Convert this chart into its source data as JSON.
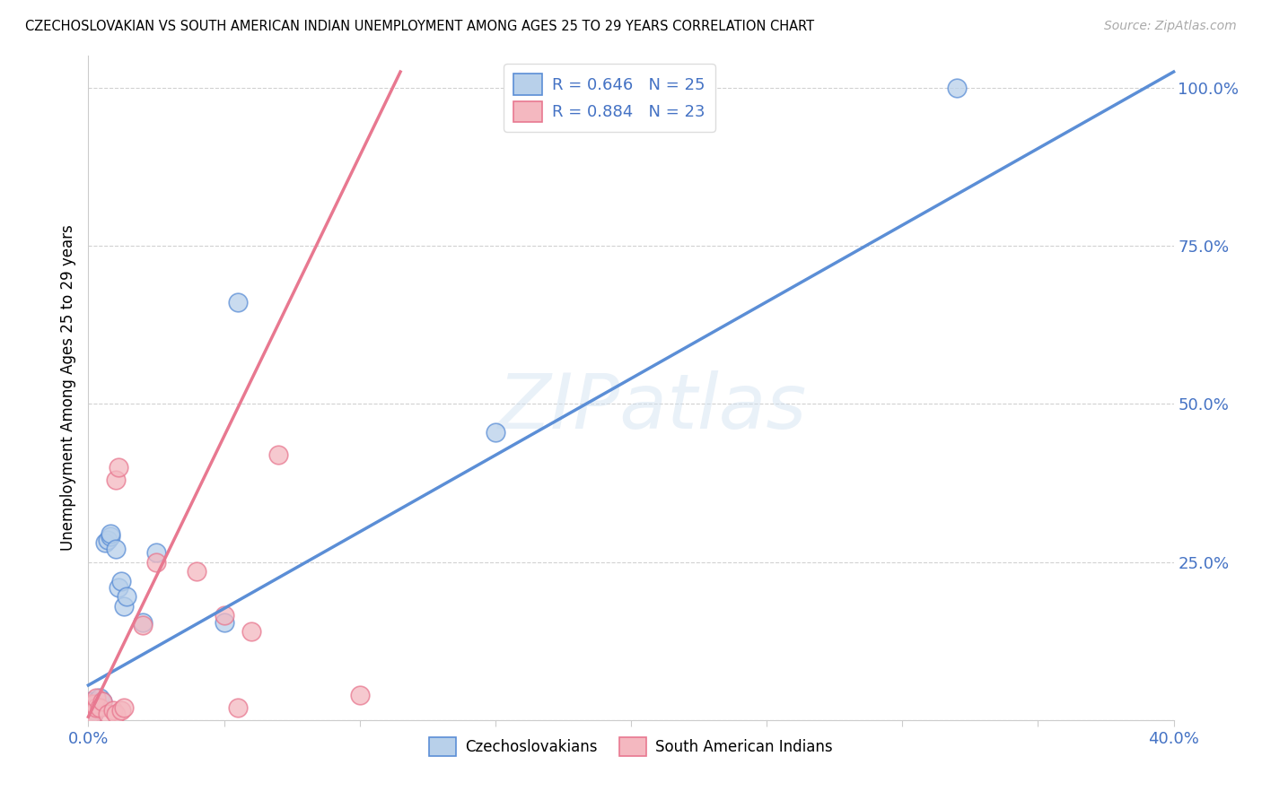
{
  "title": "CZECHOSLOVAKIAN VS SOUTH AMERICAN INDIAN UNEMPLOYMENT AMONG AGES 25 TO 29 YEARS CORRELATION CHART",
  "source": "Source: ZipAtlas.com",
  "ylabel": "Unemployment Among Ages 25 to 29 years",
  "background_color": "#ffffff",
  "grid_color": "#cccccc",
  "xlim": [
    0.0,
    0.4
  ],
  "ylim": [
    0.0,
    1.05
  ],
  "xticks": [
    0.0,
    0.05,
    0.1,
    0.15,
    0.2,
    0.25,
    0.3,
    0.35,
    0.4
  ],
  "xtick_labels": [
    "0.0%",
    "",
    "",
    "",
    "",
    "",
    "",
    "",
    "40.0%"
  ],
  "ytick_positions": [
    0.0,
    0.25,
    0.5,
    0.75,
    1.0
  ],
  "ytick_labels": [
    "",
    "25.0%",
    "50.0%",
    "75.0%",
    "100.0%"
  ],
  "blue_R": 0.646,
  "blue_N": 25,
  "pink_R": 0.884,
  "pink_N": 23,
  "blue_fill": "#b8d0ea",
  "pink_fill": "#f4b8c0",
  "blue_edge": "#5b8ed6",
  "pink_edge": "#e87890",
  "blue_label": "Czechoslovakians",
  "pink_label": "South American Indians",
  "watermark_text": "ZIPatlas",
  "blue_scatter_x": [
    0.001,
    0.001,
    0.001,
    0.002,
    0.002,
    0.002,
    0.003,
    0.003,
    0.004,
    0.005,
    0.006,
    0.007,
    0.008,
    0.008,
    0.01,
    0.011,
    0.012,
    0.013,
    0.014,
    0.02,
    0.025,
    0.05,
    0.055,
    0.15,
    0.32
  ],
  "blue_scatter_y": [
    0.01,
    0.02,
    0.03,
    0.01,
    0.015,
    0.025,
    0.03,
    0.025,
    0.035,
    0.03,
    0.28,
    0.285,
    0.29,
    0.295,
    0.27,
    0.21,
    0.22,
    0.18,
    0.195,
    0.155,
    0.265,
    0.155,
    0.66,
    0.455,
    1.0
  ],
  "pink_scatter_x": [
    0.001,
    0.001,
    0.002,
    0.002,
    0.003,
    0.003,
    0.004,
    0.005,
    0.007,
    0.009,
    0.01,
    0.01,
    0.011,
    0.012,
    0.013,
    0.02,
    0.025,
    0.04,
    0.05,
    0.055,
    0.06,
    0.07,
    0.1
  ],
  "pink_scatter_y": [
    0.01,
    0.025,
    0.01,
    0.025,
    0.02,
    0.035,
    0.02,
    0.03,
    0.01,
    0.015,
    0.01,
    0.38,
    0.4,
    0.015,
    0.02,
    0.15,
    0.25,
    0.235,
    0.165,
    0.02,
    0.14,
    0.42,
    0.04
  ],
  "blue_line_x0": 0.0,
  "blue_line_y0": 0.055,
  "blue_line_x1": 0.4,
  "blue_line_y1": 1.025,
  "pink_line_x0": 0.0,
  "pink_line_y0": 0.005,
  "pink_line_x1": 0.115,
  "pink_line_y1": 1.025
}
